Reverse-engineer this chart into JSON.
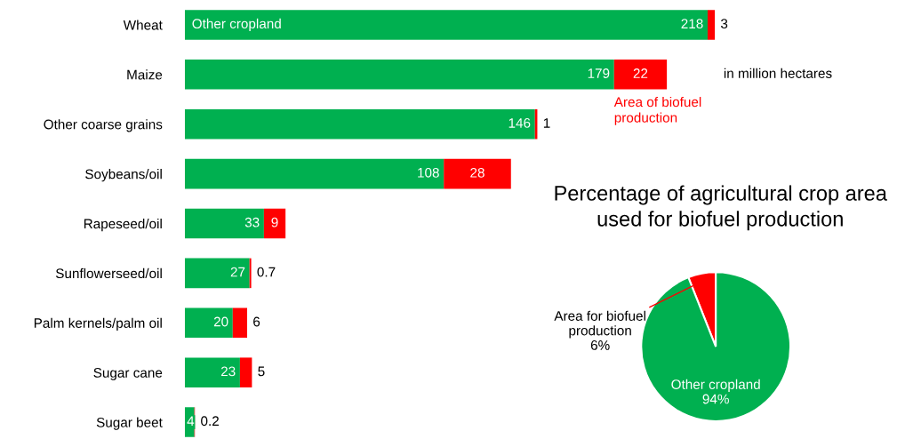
{
  "chart_data": [
    {
      "type": "bar",
      "orientation": "horizontal",
      "stacked": true,
      "data_labels": true,
      "tick_labels": "y",
      "grid": false,
      "legend": false,
      "categories": [
        "Wheat",
        "Maize",
        "Other coarse grains",
        "Soybeans/oil",
        "Rapeseed/oil",
        "Sunflowerseed/oil",
        "Palm kernels/palm oil",
        "Sugar cane",
        "Sugar beet"
      ],
      "series": [
        {
          "name": "Other cropland",
          "color": "#00b050",
          "values": [
            218,
            179,
            146,
            108,
            33,
            27,
            20,
            23,
            4
          ]
        },
        {
          "name": "Area of biofuel\nproduction",
          "color": "#ff0000",
          "values": [
            3,
            22,
            1,
            28,
            9,
            0.7,
            6,
            5,
            0.2
          ]
        }
      ],
      "annotations": [
        "in million hectares"
      ]
    },
    {
      "type": "pie",
      "title": "Percentage of agricultural crop area\nused for biofuel production",
      "categories": [
        "Area for biofuel\nproduction",
        "Other cropland"
      ],
      "values": [
        6,
        94
      ],
      "value_labels": [
        "6%",
        "94%"
      ],
      "colors": [
        "#ff0000",
        "#00b050"
      ]
    }
  ]
}
